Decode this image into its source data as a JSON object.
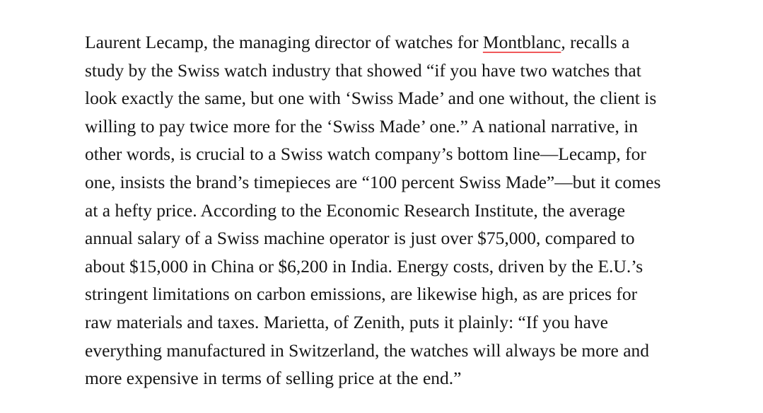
{
  "page": {
    "background_color": "#ffffff"
  },
  "article": {
    "text_color": "#161616",
    "link_underline_color": "#f0595b",
    "link": {
      "label": "Montblanc"
    },
    "paragraph_full_text": "Laurent Lecamp, the managing director of watches for Montblanc, recalls a study by the Swiss watch industry that showed “if you have two watches that look exactly the same, but one with ‘Swiss Made’ and one without, the client is willing to pay twice more for the ‘Swiss Made’ one.” A national narrative, in other words, is crucial to a Swiss watch company’s bottom line—Lecamp, for one, insists the brand’s timepieces are “100 percent Swiss Made”—but it comes at a hefty price. According to the Economic Research Institute, the average annual salary of a Swiss machine operator is just over $75,000, compared to about $15,000 in China or $6,200 in India. Energy costs, driven by the E.U.’s stringent limitations on carbon emissions, are likewise high, as are prices for raw materials and taxes. Marietta, of Zenith, puts it plainly: “If you have everything manufactured in Switzerland, the watches will always be more and more expensive in terms of selling price at the end.”",
    "lines": [
      {
        "runs": [
          {
            "text": "Laurent Lecamp, the managing director of watches for "
          },
          {
            "text": "Montblanc",
            "link": true
          },
          {
            "text": ", recalls a"
          }
        ]
      },
      {
        "runs": [
          {
            "text": "study by the Swiss watch industry that showed “if you have two watches that"
          }
        ]
      },
      {
        "runs": [
          {
            "text": "look exactly the same, but one with ‘Swiss Made’ and one without, the client is"
          }
        ]
      },
      {
        "runs": [
          {
            "text": "willing to pay twice more for the ‘Swiss Made’ one.” A national narrative, in"
          }
        ]
      },
      {
        "runs": [
          {
            "text": "other words, is crucial to a Swiss watch company’s bottom line—Lecamp, for"
          }
        ]
      },
      {
        "runs": [
          {
            "text": "one, insists the brand’s timepieces are “100 percent Swiss Made”—but it comes"
          }
        ]
      },
      {
        "runs": [
          {
            "text": "at a hefty price. According to the Economic Research Institute, the average"
          }
        ]
      },
      {
        "runs": [
          {
            "text": "annual salary of a Swiss machine operator is just over $75,000, compared to"
          }
        ]
      },
      {
        "runs": [
          {
            "text": "about $15,000 in China or $6,200 in India. Energy costs, driven by the E.U.’s"
          }
        ]
      },
      {
        "runs": [
          {
            "text": "stringent limitations on carbon emissions, are likewise high, as are prices for"
          }
        ]
      },
      {
        "runs": [
          {
            "text": "raw materials and taxes. Marietta, of Zenith, puts it plainly: “If you have"
          }
        ]
      },
      {
        "runs": [
          {
            "text": "everything manufactured in Switzerland, the watches will always be more and"
          }
        ]
      },
      {
        "runs": [
          {
            "text": "more expensive in terms of selling price at the end.”"
          }
        ]
      }
    ]
  }
}
